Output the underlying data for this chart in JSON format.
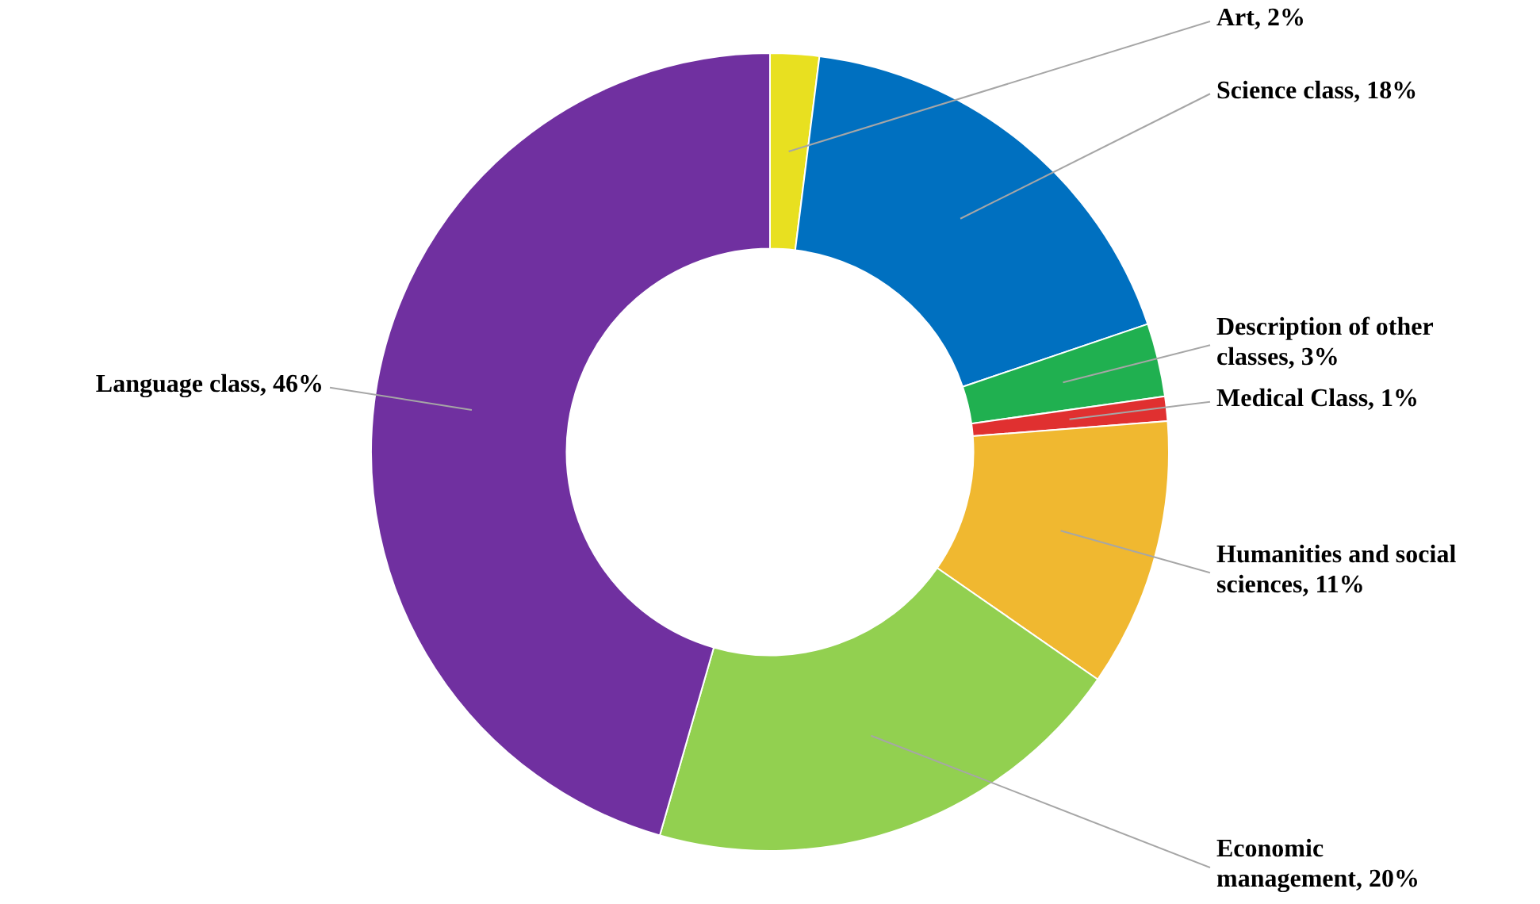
{
  "chart_data": {
    "type": "donut",
    "categories": [
      "Art",
      "Science class",
      "Description of other classes",
      "Medical Class",
      "Humanities and social sciences",
      "Economic management",
      "Language class"
    ],
    "values": [
      2,
      18,
      3,
      1,
      11,
      20,
      46
    ],
    "colors": [
      "#e8e020",
      "#0070c0",
      "#20b050",
      "#e03030",
      "#f0b830",
      "#92d050",
      "#7030a0"
    ],
    "value_labels": [
      "2%",
      "18%",
      "3%",
      "1%",
      "11%",
      "20%",
      "46%"
    ]
  }
}
